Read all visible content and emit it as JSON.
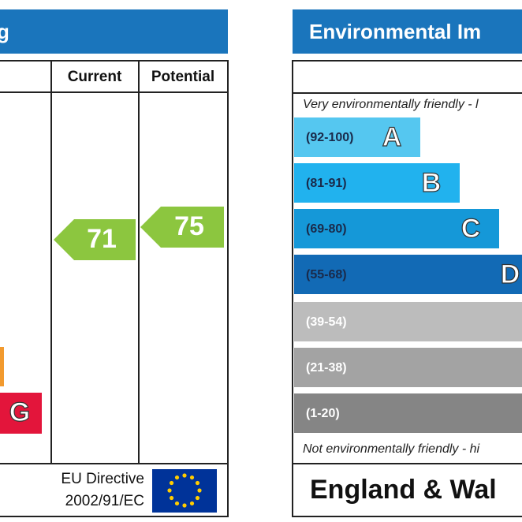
{
  "energy_panel": {
    "title": "g",
    "columns": [
      "Current",
      "Potential"
    ],
    "bands": [
      {
        "letter": "G",
        "color": "#e3153b"
      }
    ],
    "current": 71,
    "potential": 75,
    "rating_color": "#8cc63f",
    "footer": [
      "EU Directive",
      "2002/91/EC"
    ]
  },
  "environmental_panel": {
    "title": "Environmental Im",
    "top_note": "Very environmentally friendly - l",
    "bands": [
      {
        "range": "(92-100)",
        "letter": "A",
        "color": "#55c7f0"
      },
      {
        "range": "(81-91)",
        "letter": "B",
        "color": "#21b2ee"
      },
      {
        "range": "(69-80)",
        "letter": "C",
        "color": "#1598d8"
      },
      {
        "range": "(55-68)",
        "letter": "D",
        "color": "#126ab5"
      },
      {
        "range": "(39-54)",
        "color": "#bcbcbc"
      },
      {
        "range": "(21-38)",
        "color": "#a3a3a3"
      },
      {
        "range": "(1-20)",
        "color": "#858585"
      }
    ],
    "bottom_note": "Not environmentally friendly - hi",
    "footer": "England & Wal"
  }
}
